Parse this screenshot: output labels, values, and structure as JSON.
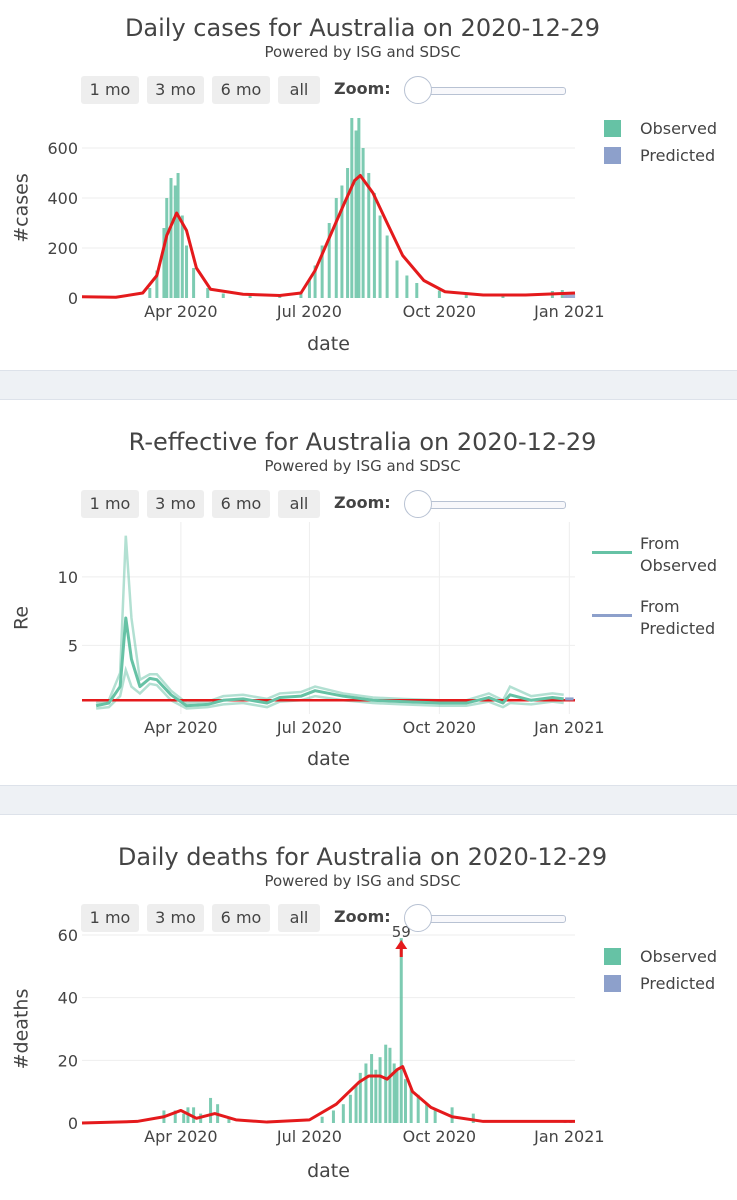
{
  "panels": [
    {
      "title": "Daily cases for Australia on 2020-12-29",
      "subtitle": "Powered by ISG and SDSC",
      "buttons": [
        "1 mo",
        "3 mo",
        "6 mo",
        "all"
      ],
      "zoom_label": "Zoom:",
      "legend": [
        "Observed",
        "Predicted"
      ]
    },
    {
      "title": "R-effective for Australia on 2020-12-29",
      "subtitle": "Powered by ISG and SDSC",
      "buttons": [
        "1 mo",
        "3 mo",
        "6 mo",
        "all"
      ],
      "zoom_label": "Zoom:",
      "legend": [
        "From Observed",
        "From Predicted"
      ]
    },
    {
      "title": "Daily deaths for Australia on 2020-12-29",
      "subtitle": "Powered by ISG and SDSC",
      "buttons": [
        "1 mo",
        "3 mo",
        "6 mo",
        "all"
      ],
      "zoom_label": "Zoom:",
      "legend": [
        "Observed",
        "Predicted"
      ]
    }
  ],
  "colors": {
    "observed": "#66c2a5",
    "predicted": "#8da0cb",
    "trend": "#e41a1c",
    "threshold": "#e41a1c"
  },
  "chart_data": [
    {
      "type": "bar",
      "title": "Daily cases for Australia on 2020-12-29",
      "xlabel": "date",
      "ylabel": "#cases",
      "xlim": [
        "2020-01-22",
        "2021-01-05"
      ],
      "ylim": [
        0,
        720
      ],
      "x_ticks": [
        "Apr 2020",
        "Jul 2020",
        "Oct 2020",
        "Jan 2021"
      ],
      "y_ticks": [
        0,
        200,
        400,
        600
      ],
      "legend_position": "top-right",
      "series": [
        {
          "name": "Observed",
          "kind": "bar",
          "x": [
            "2020-03-10",
            "2020-03-15",
            "2020-03-20",
            "2020-03-22",
            "2020-03-25",
            "2020-03-28",
            "2020-03-30",
            "2020-04-02",
            "2020-04-05",
            "2020-04-10",
            "2020-04-20",
            "2020-05-01",
            "2020-05-20",
            "2020-06-10",
            "2020-06-25",
            "2020-07-01",
            "2020-07-05",
            "2020-07-10",
            "2020-07-15",
            "2020-07-20",
            "2020-07-24",
            "2020-07-28",
            "2020-07-31",
            "2020-08-03",
            "2020-08-05",
            "2020-08-08",
            "2020-08-12",
            "2020-08-16",
            "2020-08-20",
            "2020-08-25",
            "2020-09-01",
            "2020-09-08",
            "2020-09-15",
            "2020-10-01",
            "2020-10-20",
            "2020-11-15",
            "2020-12-20",
            "2020-12-27"
          ],
          "values": [
            40,
            110,
            280,
            400,
            480,
            450,
            500,
            330,
            210,
            120,
            40,
            18,
            15,
            12,
            20,
            70,
            130,
            210,
            300,
            400,
            450,
            520,
            720,
            670,
            720,
            600,
            500,
            420,
            330,
            250,
            150,
            90,
            60,
            30,
            20,
            14,
            28,
            32
          ]
        },
        {
          "name": "Predicted",
          "kind": "bar",
          "x": [
            "2020-12-29",
            "2020-12-31",
            "2021-01-02",
            "2021-01-04"
          ],
          "values": [
            18,
            18,
            18,
            18
          ]
        },
        {
          "name": "trend",
          "kind": "line",
          "x": [
            "2020-01-22",
            "2020-02-15",
            "2020-03-05",
            "2020-03-15",
            "2020-03-22",
            "2020-03-29",
            "2020-04-05",
            "2020-04-12",
            "2020-04-22",
            "2020-05-15",
            "2020-06-10",
            "2020-06-25",
            "2020-07-05",
            "2020-07-15",
            "2020-07-25",
            "2020-08-02",
            "2020-08-06",
            "2020-08-15",
            "2020-08-25",
            "2020-09-05",
            "2020-09-20",
            "2020-10-05",
            "2020-11-01",
            "2020-12-01",
            "2021-01-05"
          ],
          "values": [
            5,
            3,
            20,
            90,
            250,
            340,
            270,
            120,
            35,
            15,
            10,
            20,
            110,
            240,
            370,
            470,
            490,
            420,
            300,
            170,
            70,
            25,
            12,
            12,
            20
          ]
        }
      ]
    },
    {
      "type": "line",
      "title": "R-effective for Australia on 2020-12-29",
      "xlabel": "date",
      "ylabel": "Re",
      "xlim": [
        "2020-01-22",
        "2021-01-05"
      ],
      "ylim": [
        0,
        14
      ],
      "x_ticks": [
        "Apr 2020",
        "Jul 2020",
        "Oct 2020",
        "Jan 2021"
      ],
      "y_ticks": [
        5,
        10
      ],
      "reference_line": 1,
      "grid": true,
      "legend_position": "top-right",
      "series": [
        {
          "name": "From Observed",
          "kind": "line",
          "x": [
            "2020-02-01",
            "2020-02-10",
            "2020-02-18",
            "2020-02-22",
            "2020-02-26",
            "2020-03-03",
            "2020-03-10",
            "2020-03-15",
            "2020-03-25",
            "2020-04-05",
            "2020-04-20",
            "2020-05-01",
            "2020-05-15",
            "2020-06-01",
            "2020-06-10",
            "2020-06-25",
            "2020-07-05",
            "2020-07-25",
            "2020-08-15",
            "2020-09-05",
            "2020-10-01",
            "2020-10-20",
            "2020-11-05",
            "2020-11-15",
            "2020-11-20",
            "2020-12-05",
            "2020-12-20",
            "2020-12-28"
          ],
          "values": [
            0.6,
            0.8,
            2.0,
            7.0,
            4.0,
            2.0,
            2.6,
            2.5,
            1.4,
            0.6,
            0.7,
            1.0,
            1.1,
            0.8,
            1.2,
            1.3,
            1.7,
            1.3,
            1.0,
            0.9,
            0.8,
            0.8,
            1.2,
            0.8,
            1.4,
            1.0,
            1.2,
            1.1
          ],
          "upper": [
            0.8,
            1.0,
            3.0,
            13.0,
            7.0,
            2.5,
            2.9,
            2.9,
            1.7,
            0.8,
            0.9,
            1.3,
            1.4,
            1.1,
            1.5,
            1.6,
            2.0,
            1.5,
            1.2,
            1.1,
            1.0,
            1.0,
            1.5,
            1.0,
            2.0,
            1.3,
            1.5,
            1.4
          ],
          "lower": [
            0.4,
            0.5,
            1.3,
            3.2,
            2.0,
            1.5,
            2.2,
            2.1,
            1.0,
            0.4,
            0.5,
            0.7,
            0.8,
            0.5,
            0.9,
            1.0,
            1.3,
            1.0,
            0.8,
            0.7,
            0.6,
            0.6,
            0.9,
            0.5,
            0.8,
            0.7,
            0.9,
            0.8
          ]
        },
        {
          "name": "From Predicted",
          "kind": "line",
          "x": [
            "2020-12-29",
            "2021-01-04"
          ],
          "values": [
            1.1,
            1.1
          ]
        }
      ]
    },
    {
      "type": "bar",
      "title": "Daily deaths for Australia on 2020-12-29",
      "xlabel": "date",
      "ylabel": "#deaths",
      "xlim": [
        "2020-01-22",
        "2021-01-05"
      ],
      "ylim": [
        0,
        60
      ],
      "x_ticks": [
        "Apr 2020",
        "Jul 2020",
        "Oct 2020",
        "Jan 2021"
      ],
      "y_ticks": [
        0,
        20,
        40,
        60
      ],
      "legend_position": "top-right",
      "annotations": [
        {
          "x": "2020-09-04",
          "text": "59"
        }
      ],
      "series": [
        {
          "name": "Observed",
          "kind": "bar",
          "x": [
            "2020-03-20",
            "2020-03-28",
            "2020-04-03",
            "2020-04-06",
            "2020-04-10",
            "2020-04-15",
            "2020-04-22",
            "2020-04-27",
            "2020-05-05",
            "2020-07-10",
            "2020-07-18",
            "2020-07-25",
            "2020-07-30",
            "2020-08-03",
            "2020-08-06",
            "2020-08-10",
            "2020-08-14",
            "2020-08-17",
            "2020-08-20",
            "2020-08-24",
            "2020-08-27",
            "2020-08-30",
            "2020-09-01",
            "2020-09-04",
            "2020-09-07",
            "2020-09-11",
            "2020-09-16",
            "2020-09-22",
            "2020-09-28",
            "2020-10-10",
            "2020-10-25"
          ],
          "values": [
            4,
            4,
            3,
            5,
            5,
            3,
            8,
            6,
            2,
            2,
            4,
            6,
            9,
            12,
            16,
            19,
            22,
            17,
            21,
            25,
            24,
            19,
            17,
            59,
            14,
            11,
            9,
            6,
            4,
            5,
            3
          ]
        },
        {
          "name": "Predicted",
          "kind": "bar",
          "x": [
            "2020-12-29",
            "2021-01-02"
          ],
          "values": [
            0.4,
            0.4
          ]
        },
        {
          "name": "trend",
          "kind": "line",
          "x": [
            "2020-01-22",
            "2020-03-01",
            "2020-03-20",
            "2020-04-01",
            "2020-04-12",
            "2020-04-25",
            "2020-05-10",
            "2020-06-01",
            "2020-07-01",
            "2020-07-20",
            "2020-08-05",
            "2020-08-12",
            "2020-08-20",
            "2020-08-25",
            "2020-09-01",
            "2020-09-05",
            "2020-09-12",
            "2020-09-25",
            "2020-10-10",
            "2020-11-01",
            "2021-01-05"
          ],
          "values": [
            0,
            0.5,
            2,
            4,
            1.5,
            3,
            1,
            0.3,
            1,
            6,
            13,
            15,
            15,
            14,
            17,
            18,
            10,
            5,
            2,
            0.5,
            0.5
          ]
        }
      ]
    }
  ]
}
